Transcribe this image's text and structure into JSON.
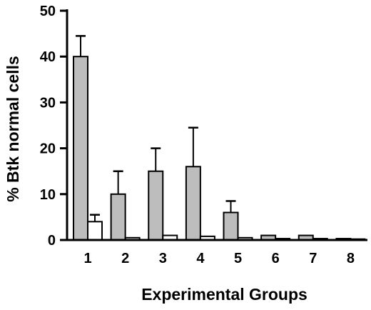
{
  "chart_data": {
    "type": "bar",
    "title": "",
    "xlabel": "Experimental Groups",
    "ylabel": "% Btk normal cells",
    "categories": [
      "1",
      "2",
      "3",
      "4",
      "5",
      "6",
      "7",
      "8"
    ],
    "ylim": [
      0,
      50
    ],
    "yticks": [
      0,
      10,
      20,
      30,
      40,
      50
    ],
    "ytick_labels": [
      "0",
      "10",
      "20",
      "30",
      "40",
      "50"
    ],
    "grid": false,
    "legend": "none",
    "series": [
      {
        "values": [
          40,
          10,
          15,
          16,
          6,
          1,
          1,
          0.3
        ],
        "error_upper": [
          4.5,
          5,
          5,
          8.5,
          2.5,
          0,
          0,
          0
        ],
        "color": "#bdbdbd"
      },
      {
        "values": [
          4,
          0.5,
          1,
          0.8,
          0.5,
          0.3,
          0.3,
          0.2
        ],
        "error_upper": [
          1.5,
          0,
          0,
          0,
          0,
          0,
          0,
          0
        ],
        "color": "#ffffff"
      }
    ]
  }
}
